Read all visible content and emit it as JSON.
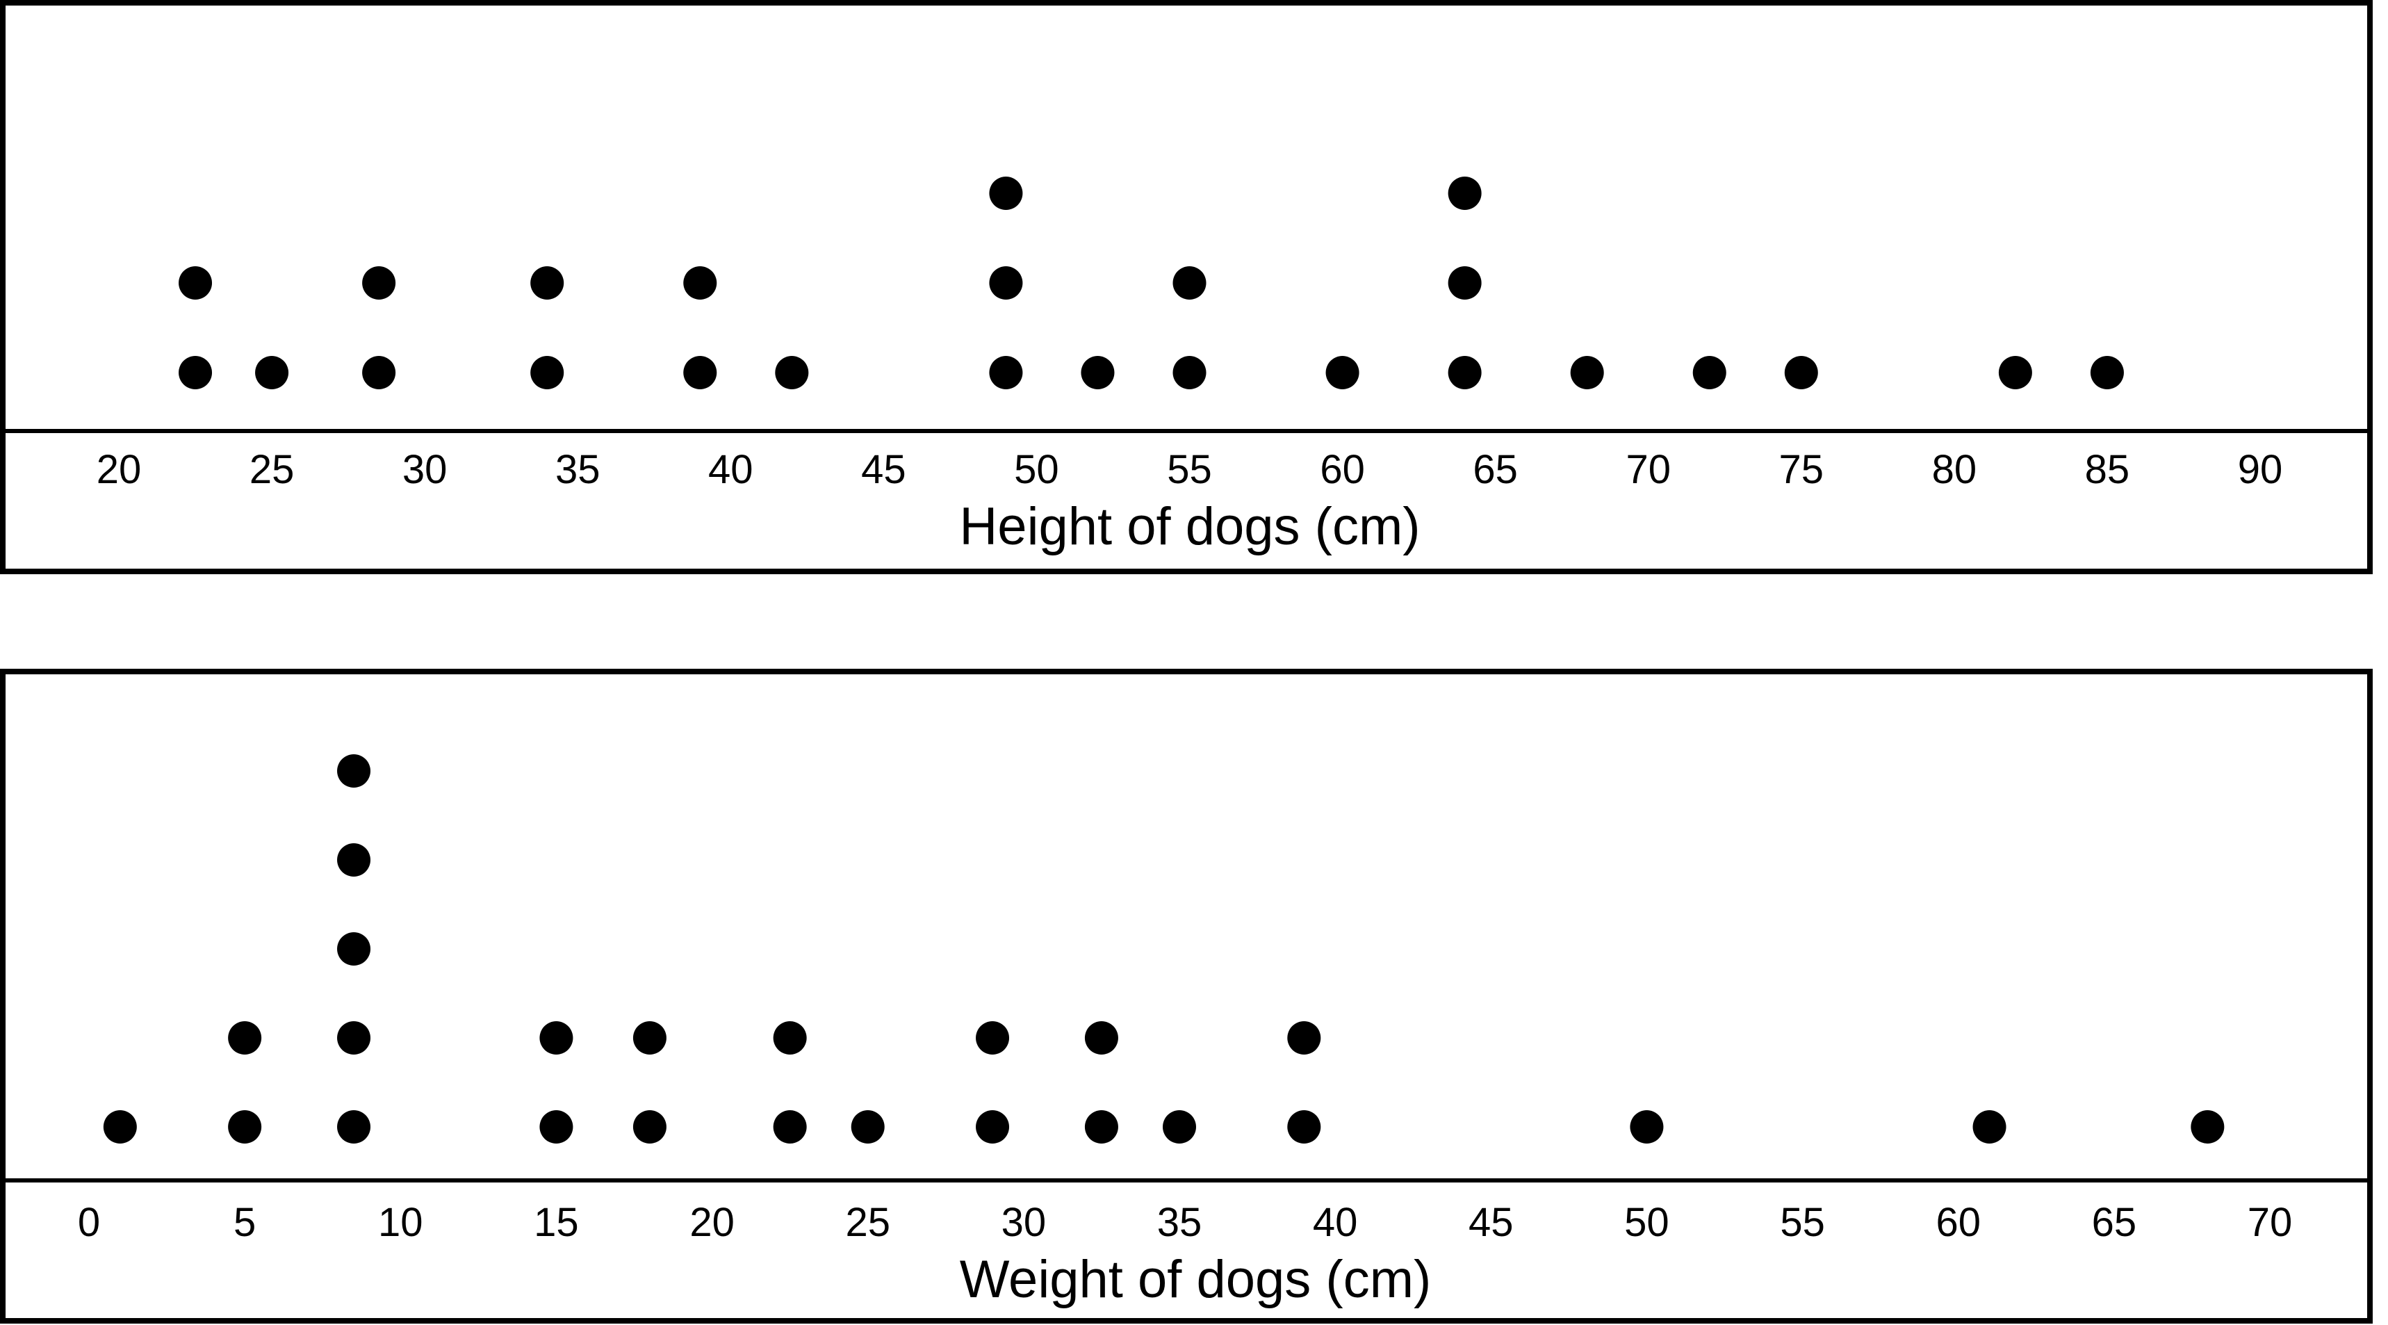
{
  "chart_data": [
    {
      "type": "dot-plot",
      "title": "",
      "xlabel": "Height of dogs (cm)",
      "ylabel": "",
      "xlim": [
        20,
        90
      ],
      "ticks": [
        "20",
        "25",
        "30",
        "35",
        "40",
        "45",
        "50",
        "55",
        "60",
        "65",
        "70",
        "75",
        "80",
        "85",
        "90"
      ],
      "grid": false,
      "legend": "none",
      "points": [
        {
          "x": 22.5,
          "count": 2
        },
        {
          "x": 25,
          "count": 1
        },
        {
          "x": 28.5,
          "count": 2
        },
        {
          "x": 34,
          "count": 2
        },
        {
          "x": 39,
          "count": 2
        },
        {
          "x": 42,
          "count": 1
        },
        {
          "x": 49,
          "count": 3
        },
        {
          "x": 52,
          "count": 1
        },
        {
          "x": 55,
          "count": 2
        },
        {
          "x": 60,
          "count": 1
        },
        {
          "x": 64,
          "count": 3
        },
        {
          "x": 68,
          "count": 1
        },
        {
          "x": 72,
          "count": 1
        },
        {
          "x": 75,
          "count": 1
        },
        {
          "x": 82,
          "count": 1
        },
        {
          "x": 85,
          "count": 1
        }
      ]
    },
    {
      "type": "dot-plot",
      "title": "",
      "xlabel": "Weight of dogs (cm)",
      "ylabel": "",
      "xlim": [
        0,
        70
      ],
      "ticks": [
        "0",
        "5",
        "10",
        "15",
        "20",
        "25",
        "30",
        "35",
        "40",
        "45",
        "50",
        "55",
        "60",
        "65",
        "70"
      ],
      "grid": false,
      "legend": "none",
      "points": [
        {
          "x": 1,
          "count": 1
        },
        {
          "x": 5,
          "count": 2
        },
        {
          "x": 8.5,
          "count": 5
        },
        {
          "x": 15,
          "count": 2
        },
        {
          "x": 18,
          "count": 2
        },
        {
          "x": 22.5,
          "count": 2
        },
        {
          "x": 25,
          "count": 1
        },
        {
          "x": 29,
          "count": 2
        },
        {
          "x": 32.5,
          "count": 2
        },
        {
          "x": 35,
          "count": 1
        },
        {
          "x": 39,
          "count": 2
        },
        {
          "x": 50,
          "count": 1
        },
        {
          "x": 61,
          "count": 1
        },
        {
          "x": 68,
          "count": 1
        }
      ]
    }
  ],
  "colors": {
    "dot": "#000000",
    "axis": "#000000",
    "frame": "#000000",
    "background": "#ffffff"
  }
}
